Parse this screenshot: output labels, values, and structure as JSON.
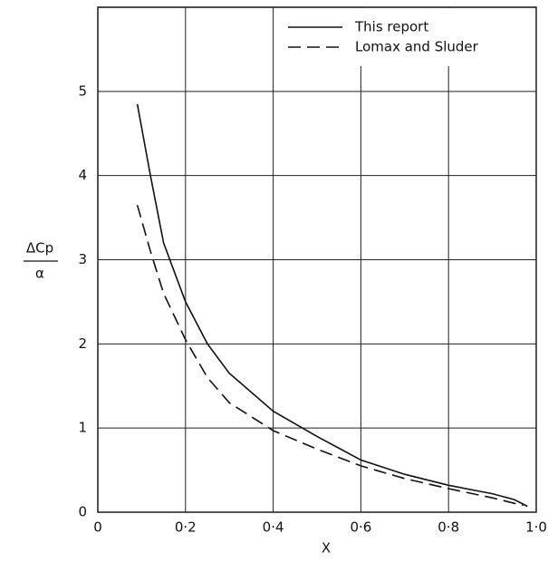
{
  "chart_data": {
    "type": "line",
    "xlabel": "X",
    "ylabel_numerator": "ΔCp",
    "ylabel_denominator": "α",
    "xlim": [
      0,
      1
    ],
    "ylim": [
      0,
      6
    ],
    "xticks": [
      0,
      {
        "value": 0.2,
        "label": "0·2"
      },
      {
        "value": 0.4,
        "label": "0·4"
      },
      {
        "value": 0.6,
        "label": "0·6"
      },
      {
        "value": 0.8,
        "label": "0·8"
      },
      {
        "value": 1,
        "label": "1·0"
      }
    ],
    "yticks": [
      0,
      1,
      2,
      3,
      4,
      5
    ],
    "grid": true,
    "legend": "upper right",
    "series": [
      {
        "name": "This report",
        "color": "#111111",
        "dash": "solid",
        "x": [
          0.09,
          0.12,
          0.15,
          0.2,
          0.25,
          0.3,
          0.4,
          0.5,
          0.6,
          0.7,
          0.8,
          0.9,
          0.95,
          0.98
        ],
        "values": [
          4.85,
          4.0,
          3.2,
          2.5,
          2.0,
          1.65,
          1.2,
          0.9,
          0.62,
          0.45,
          0.32,
          0.22,
          0.15,
          0.07
        ]
      },
      {
        "name": "Lomax and Sluder",
        "color": "#111111",
        "dash": "dashed",
        "x": [
          0.09,
          0.12,
          0.15,
          0.2,
          0.25,
          0.3,
          0.4,
          0.5,
          0.6,
          0.7,
          0.8,
          0.9,
          0.97
        ],
        "values": [
          3.65,
          3.1,
          2.6,
          2.05,
          1.6,
          1.3,
          0.97,
          0.75,
          0.55,
          0.4,
          0.28,
          0.17,
          0.08
        ]
      }
    ]
  }
}
